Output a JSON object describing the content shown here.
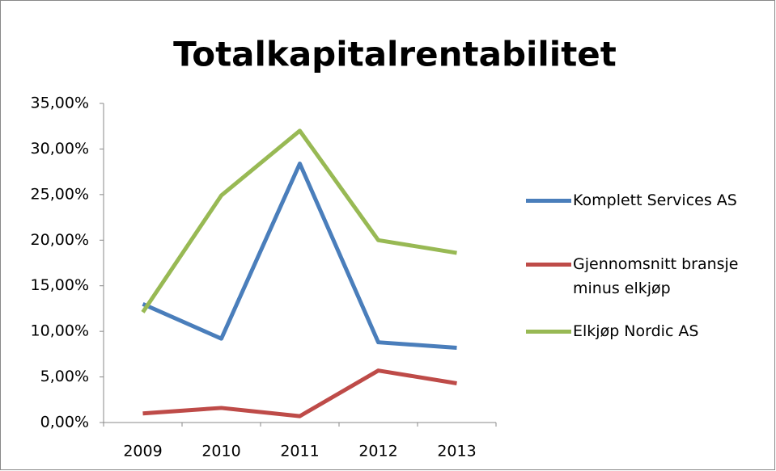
{
  "chart_data": {
    "type": "line",
    "title": "Totalkapitalrentabilitet",
    "categories": [
      "2009",
      "2010",
      "2011",
      "2012",
      "2013"
    ],
    "series": [
      {
        "name": "Komplett Services AS",
        "color": "#4a7ebb",
        "values": [
          13.0,
          9.2,
          28.4,
          8.8,
          8.2
        ]
      },
      {
        "name": "Gjennomsnitt bransje minus elkjøp",
        "color": "#be4b48",
        "values": [
          1.0,
          1.6,
          0.7,
          5.7,
          4.3
        ]
      },
      {
        "name": "Elkjøp Nordic AS",
        "color": "#98b954",
        "values": [
          12.1,
          24.9,
          32.0,
          20.0,
          18.6
        ]
      }
    ],
    "ylim": [
      0,
      35
    ],
    "yticks": [
      {
        "value": 0,
        "label": "0,00%"
      },
      {
        "value": 5,
        "label": "5,00%"
      },
      {
        "value": 10,
        "label": "10,00%"
      },
      {
        "value": 15,
        "label": "15,00%"
      },
      {
        "value": 20,
        "label": "20,00%"
      },
      {
        "value": 25,
        "label": "25,00%"
      },
      {
        "value": 30,
        "label": "30,00%"
      },
      {
        "value": 35,
        "label": "35,00%"
      }
    ],
    "grid": false,
    "legend": "right"
  }
}
